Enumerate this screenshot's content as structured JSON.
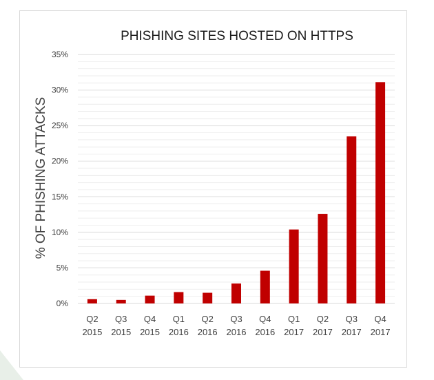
{
  "chart_data": {
    "type": "bar",
    "title": "PHISHING SITES HOSTED ON HTTPS",
    "ylabel": "% OF PHISHING ATTACKS",
    "xlabel": "",
    "categories": [
      [
        "Q2",
        "2015"
      ],
      [
        "Q3",
        "2015"
      ],
      [
        "Q4",
        "2015"
      ],
      [
        "Q1",
        "2016"
      ],
      [
        "Q2",
        "2016"
      ],
      [
        "Q3",
        "2016"
      ],
      [
        "Q4",
        "2016"
      ],
      [
        "Q1",
        "2017"
      ],
      [
        "Q2",
        "2017"
      ],
      [
        "Q3",
        "2017"
      ],
      [
        "Q4",
        "2017"
      ]
    ],
    "values": [
      0.6,
      0.5,
      1.1,
      1.6,
      1.5,
      2.8,
      4.6,
      10.4,
      12.6,
      23.5,
      31.1
    ],
    "ylim": [
      0,
      35
    ],
    "yticks": [
      0,
      5,
      10,
      15,
      20,
      25,
      30,
      35
    ],
    "ytick_labels": [
      "0%",
      "5%",
      "10%",
      "15%",
      "20%",
      "25%",
      "30%",
      "35%"
    ],
    "minor_gridlines_per_major": 5,
    "grid": true,
    "legend": "none",
    "bar_color": "#c00000",
    "major_grid_color": "#d9d9d9",
    "minor_grid_color": "#eeeeee",
    "text_color": "#404040",
    "title_color": "#1a1a1a"
  }
}
